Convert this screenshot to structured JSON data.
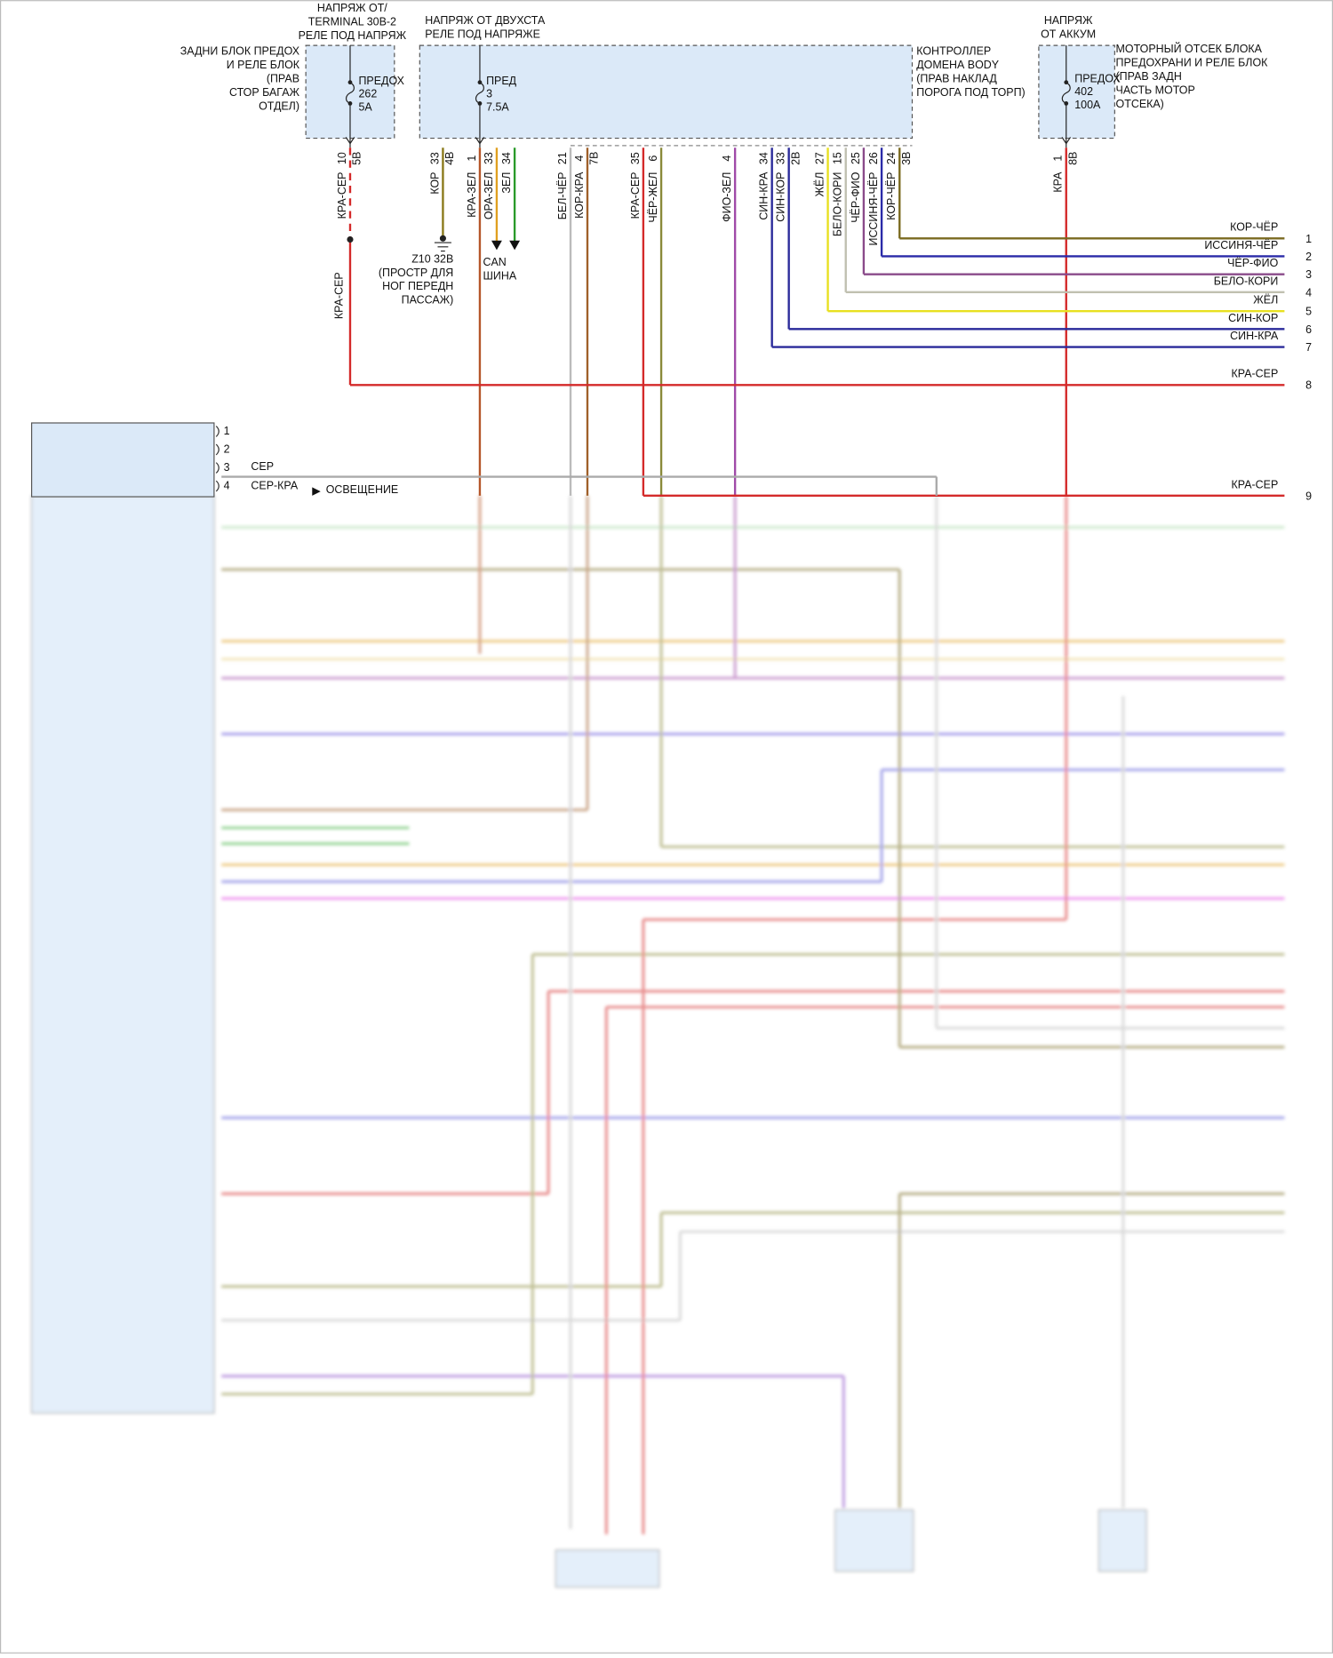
{
  "fuse_left": {
    "source": [
      "НАПРЯЖ ОТ/",
      "TERMINAL 30B-2",
      "РЕЛЕ ПОД НАПРЯЖ"
    ],
    "box": [
      "ЗАДНИ БЛОК ПРЕДОХ",
      "И РЕЛЕ БЛОК",
      "(ПРАВ",
      "СТОР БАГАЖ",
      "ОТДЕЛ)"
    ],
    "fuse": [
      "ПРЕДОХ",
      "262",
      "5A"
    ]
  },
  "controller": {
    "source": [
      "НАПРЯЖ ОТ ДВУХСТА",
      "РЕЛЕ ПОД НАПРЯЖЕ"
    ],
    "box": [
      "КОНТРОЛЛЕР",
      "ДОМЕНА BODY",
      "(ПРАВ НАКЛАД",
      "ПОРОГА ПОД ТОРП)"
    ],
    "fuse": [
      "ПРЕД",
      "3",
      "7.5A"
    ]
  },
  "fuse_right": {
    "source": [
      "НАПРЯЖ",
      "ОТ АККУМ"
    ],
    "box": [
      "МОТОРНЫЙ ОТСЕК БЛОКА",
      "ПРЕДОХРАНИ И РЕЛЕ БЛОК",
      "(ПРАВ ЗАДН",
      "ЧАСТЬ МОТОР",
      "ОТСЕКА)"
    ],
    "fuse": [
      "ПРЕДОХ",
      "402",
      "100A"
    ]
  },
  "pins": [
    {
      "pin": "10",
      "connector": "5B",
      "wire": "КРА-СЕР"
    },
    {
      "pin": "33",
      "connector": "4B",
      "wire": "КОР"
    },
    {
      "pin": "1",
      "wire": "КРА-ЗЕЛ"
    },
    {
      "pin": "33",
      "wire": "ОРА-ЗЕЛ"
    },
    {
      "pin": "34",
      "wire": "ЗЕЛ"
    },
    {
      "pin": "21",
      "wire": "БЕЛ-ЧЁР"
    },
    {
      "pin": "4",
      "connector": "7B",
      "wire": "КОР-КРА"
    },
    {
      "pin": "35",
      "wire": "КРА-СЕР"
    },
    {
      "pin": "6",
      "wire": "ЧЁР-ЖЕЛ"
    },
    {
      "pin": "4",
      "wire": "ФИО-ЗЕЛ"
    },
    {
      "pin": "34",
      "wire": "СИН-КРА"
    },
    {
      "pin": "33",
      "connector": "2B",
      "wire": "СИН-КОР"
    },
    {
      "pin": "27",
      "wire": "ЖЁЛ"
    },
    {
      "pin": "15",
      "wire": "БЕЛО-КОРИ"
    },
    {
      "pin": "25",
      "wire": "ЧЁР-ФИО"
    },
    {
      "pin": "26",
      "wire": "ИССИНЯ-ЧЁР"
    },
    {
      "pin": "24",
      "connector": "3B",
      "wire": "КОР-ЧЁР"
    },
    {
      "pin": "1",
      "connector": "8B",
      "wire": "КРА"
    }
  ],
  "ground": [
    "Z10 32B",
    "(ПРОСТР ДЛЯ",
    "НОГ ПЕРЕДН",
    "ПАССАЖ)"
  ],
  "can": [
    "CAN",
    "ШИНА"
  ],
  "splice_wire": "КРА-СЕР",
  "outputs": [
    {
      "wire": "КОР-ЧЁР",
      "number": "1"
    },
    {
      "wire": "ИССИНЯ-ЧЁР",
      "number": "2"
    },
    {
      "wire": "ЧЁР-ФИО",
      "number": "3"
    },
    {
      "wire": "БЕЛО-КОРИ",
      "number": "4"
    },
    {
      "wire": "ЖЁЛ",
      "number": "5"
    },
    {
      "wire": "СИН-КОР",
      "number": "6"
    },
    {
      "wire": "СИН-КРА",
      "number": "7"
    },
    {
      "wire": "КРА-СЕР",
      "number": "8"
    },
    {
      "wire": "КРА-СЕР",
      "number": "9"
    }
  ],
  "left_connector": {
    "pins": [
      "1",
      "2",
      "3",
      "4"
    ],
    "wires": [
      "СЕР",
      "СЕР-КРА"
    ],
    "note": "ОСВЕЩЕНИЕ"
  }
}
